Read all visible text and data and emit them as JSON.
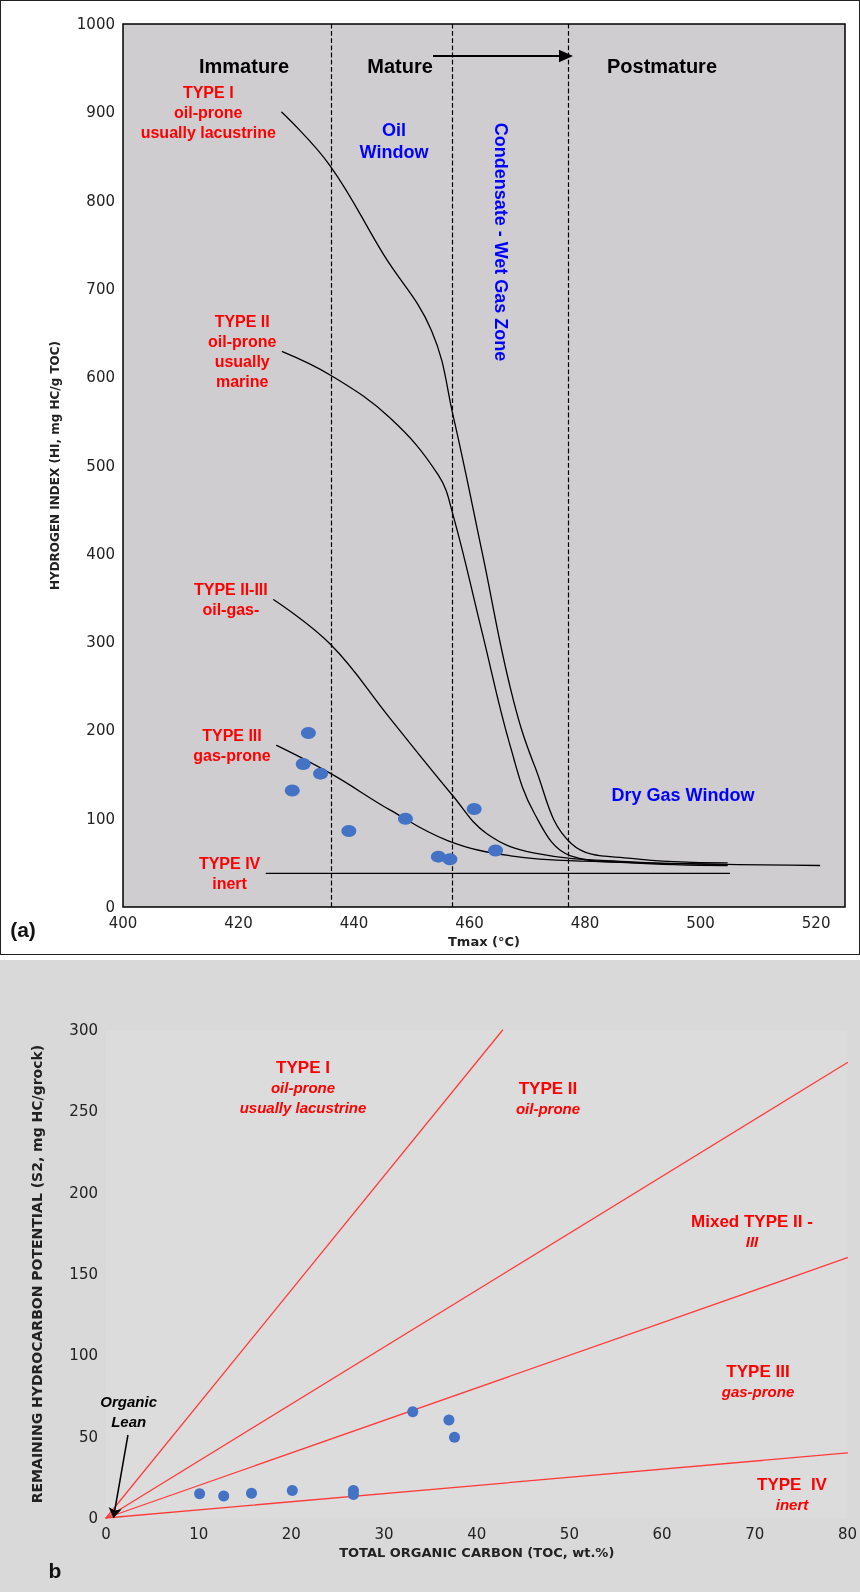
{
  "chart_data": [
    {
      "type": "line",
      "xlabel": "Tmax (°C)",
      "ylabel": "HYDROGEN INDEX (HI, mg HC/g TOC)",
      "xlim": [
        400,
        525
      ],
      "xticks": [
        400,
        420,
        440,
        460,
        480,
        500,
        520
      ],
      "ylim": [
        0,
        1000
      ],
      "yticks": [
        0,
        100,
        200,
        300,
        400,
        500,
        600,
        700,
        800,
        900,
        1000
      ],
      "series": [
        {
          "name": "TYPE I\noil-prone\nusually lacustrine",
          "color": "#000000",
          "marker": "none",
          "x": [
            427.5,
            435.8,
            445.1,
            453.4,
            457.2,
            462.2,
            467.1,
            471.3,
            477.6,
            488,
            504.6
          ],
          "values": [
            900,
            840,
            739,
            653,
            555,
            401,
            247,
            159,
            72,
            55,
            50
          ]
        },
        {
          "name": "TYPE II\noil-prone\nusually\nmarine",
          "color": "#000000",
          "marker": "none",
          "x": [
            427.6,
            436,
            446.2,
            454.6,
            457.1,
            462.1,
            467.1,
            471.3,
            477.5,
            488,
            504.6
          ],
          "values": [
            629,
            602,
            554,
            489,
            445,
            313,
            181,
            105,
            58,
            50,
            47
          ]
        },
        {
          "name": "TYPE II-III\noil-gas-",
          "color": "#000000",
          "marker": "none",
          "x": [
            426.1,
            436,
            446.2,
            457.1,
            463,
            471.3,
            488,
            504.6
          ],
          "values": [
            348,
            297,
            214,
            126,
            83,
            61,
            51,
            48
          ]
        },
        {
          "name": "TYPE III\ngas-prone",
          "color": "#000000",
          "marker": "none",
          "x": [
            426.6,
            436,
            446.2,
            456.3,
            467.1,
            479.6,
            520.6
          ],
          "values": [
            183,
            151,
            110,
            75,
            58,
            52,
            47
          ]
        },
        {
          "name": "TYPE IV\ninert",
          "color": "#000000",
          "marker": "none",
          "x": [
            424.8,
            505
          ],
          "values": [
            38,
            38
          ]
        },
        {
          "type": "scatter",
          "color": "#4472c4",
          "marker": "circle",
          "x": [
            432.1,
            431.2,
            434.2,
            429.3,
            439.1,
            448.9,
            460.8,
            454.6,
            456.6,
            464.5
          ],
          "values": [
            197,
            162,
            151,
            132,
            86,
            100,
            111,
            57,
            54,
            64
          ]
        }
      ],
      "ref_lines": [
        {
          "axis": "x",
          "value": 436,
          "line_style": "dashed",
          "color": "#000000"
        },
        {
          "axis": "x",
          "value": 457,
          "line_style": "dashed",
          "color": "#000000"
        },
        {
          "axis": "x",
          "value": 477,
          "line_style": "dashed",
          "color": "#000000"
        }
      ],
      "annotations": [
        "Immature",
        "Mature",
        "Postmature",
        "Oil\nWindow",
        "Condensate - Wet Gas Zone",
        "Dry Gas Window",
        "(a)"
      ]
    },
    {
      "type": "line",
      "xlabel": "TOTAL ORGANIC CARBON (TOC, wt.%)",
      "ylabel": "REMAINING HYDROCARBON POTENTIAL (S2, mg HC/grock)",
      "xlim": [
        0,
        80
      ],
      "xticks": [
        0,
        10,
        20,
        30,
        40,
        50,
        60,
        70,
        80
      ],
      "ylim": [
        0,
        300
      ],
      "yticks": [
        0,
        50,
        100,
        150,
        200,
        250,
        300
      ],
      "series": [
        {
          "color": "#ff3b3b",
          "marker": "none",
          "x": [
            0,
            42.8
          ],
          "values": [
            0,
            300
          ]
        },
        {
          "color": "#ff3b3b",
          "marker": "none",
          "x": [
            0,
            80
          ],
          "values": [
            0,
            280
          ]
        },
        {
          "color": "#ff3b3b",
          "marker": "none",
          "x": [
            0,
            80
          ],
          "values": [
            0,
            160
          ]
        },
        {
          "color": "#ff3b3b",
          "marker": "none",
          "x": [
            0,
            80
          ],
          "values": [
            0,
            40
          ]
        },
        {
          "type": "scatter",
          "color": "#4472c4",
          "marker": "circle",
          "x": [
            10.1,
            12.7,
            15.7,
            20.1,
            26.7,
            26.7,
            33.1,
            37,
            37.6
          ],
          "values": [
            14.9,
            13.5,
            15.2,
            16.9,
            16.9,
            14.5,
            65.3,
            60.2,
            49.7
          ]
        }
      ],
      "annotations": [
        "TYPE I\noil-prone\nusually lacustrine",
        "TYPE II\noil-prone",
        "Mixed TYPE II -\nIII",
        "TYPE III\ngas-prone",
        "TYPE  IV\ninert",
        {
          "text": "Organic\nLean",
          "x": 0.8,
          "y": 0
        },
        "b"
      ]
    }
  ]
}
